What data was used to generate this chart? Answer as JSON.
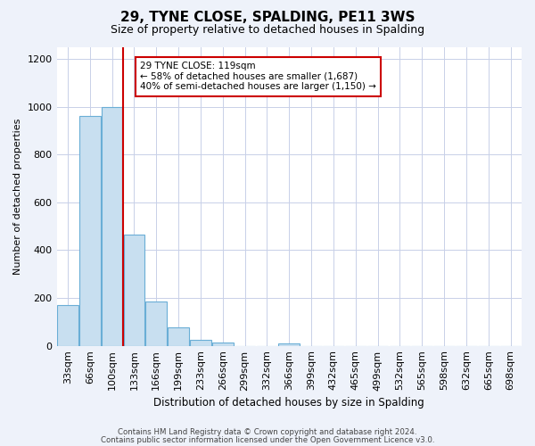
{
  "title": "29, TYNE CLOSE, SPALDING, PE11 3WS",
  "subtitle": "Size of property relative to detached houses in Spalding",
  "xlabel": "Distribution of detached houses by size in Spalding",
  "ylabel": "Number of detached properties",
  "bar_labels": [
    "33sqm",
    "66sqm",
    "100sqm",
    "133sqm",
    "166sqm",
    "199sqm",
    "233sqm",
    "266sqm",
    "299sqm",
    "332sqm",
    "366sqm",
    "399sqm",
    "432sqm",
    "465sqm",
    "499sqm",
    "532sqm",
    "565sqm",
    "598sqm",
    "632sqm",
    "665sqm",
    "698sqm"
  ],
  "bar_values": [
    170,
    960,
    1000,
    465,
    185,
    75,
    25,
    15,
    0,
    0,
    10,
    0,
    0,
    0,
    0,
    0,
    0,
    0,
    0,
    0,
    0
  ],
  "bar_color": "#c8dff0",
  "bar_edge_color": "#6aaed6",
  "vline_x": 2.5,
  "vline_color": "#cc0000",
  "annotation_line1": "29 TYNE CLOSE: 119sqm",
  "annotation_line2": "← 58% of detached houses are smaller (1,687)",
  "annotation_line3": "40% of semi-detached houses are larger (1,150) →",
  "annotation_box_color": "#ffffff",
  "annotation_box_edge": "#cc0000",
  "ylim": [
    0,
    1250
  ],
  "yticks": [
    0,
    200,
    400,
    600,
    800,
    1000,
    1200
  ],
  "footer_line1": "Contains HM Land Registry data © Crown copyright and database right 2024.",
  "footer_line2": "Contains public sector information licensed under the Open Government Licence v3.0.",
  "bg_color": "#eef2fa",
  "plot_bg_color": "#ffffff",
  "grid_color": "#c8d0e8"
}
